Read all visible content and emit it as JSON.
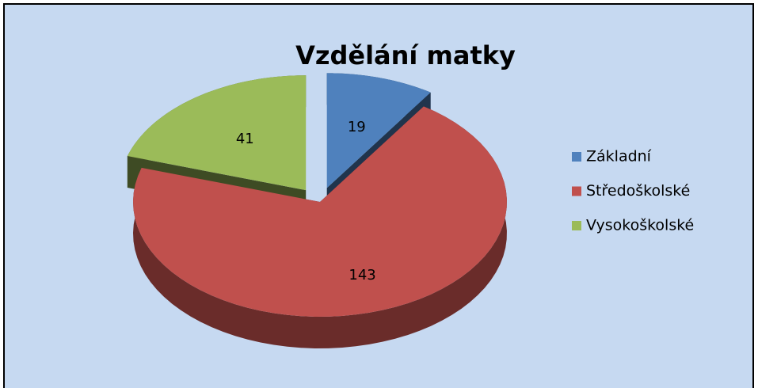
{
  "chart_data": {
    "type": "pie",
    "title": "Vzdělání matky",
    "categories": [
      "Základní",
      "Středoškolské",
      "Vysokoškolské"
    ],
    "values": [
      19,
      143,
      41
    ],
    "colors": [
      "#4f81bd",
      "#c0504d",
      "#9bbb59"
    ],
    "legend": "right"
  }
}
